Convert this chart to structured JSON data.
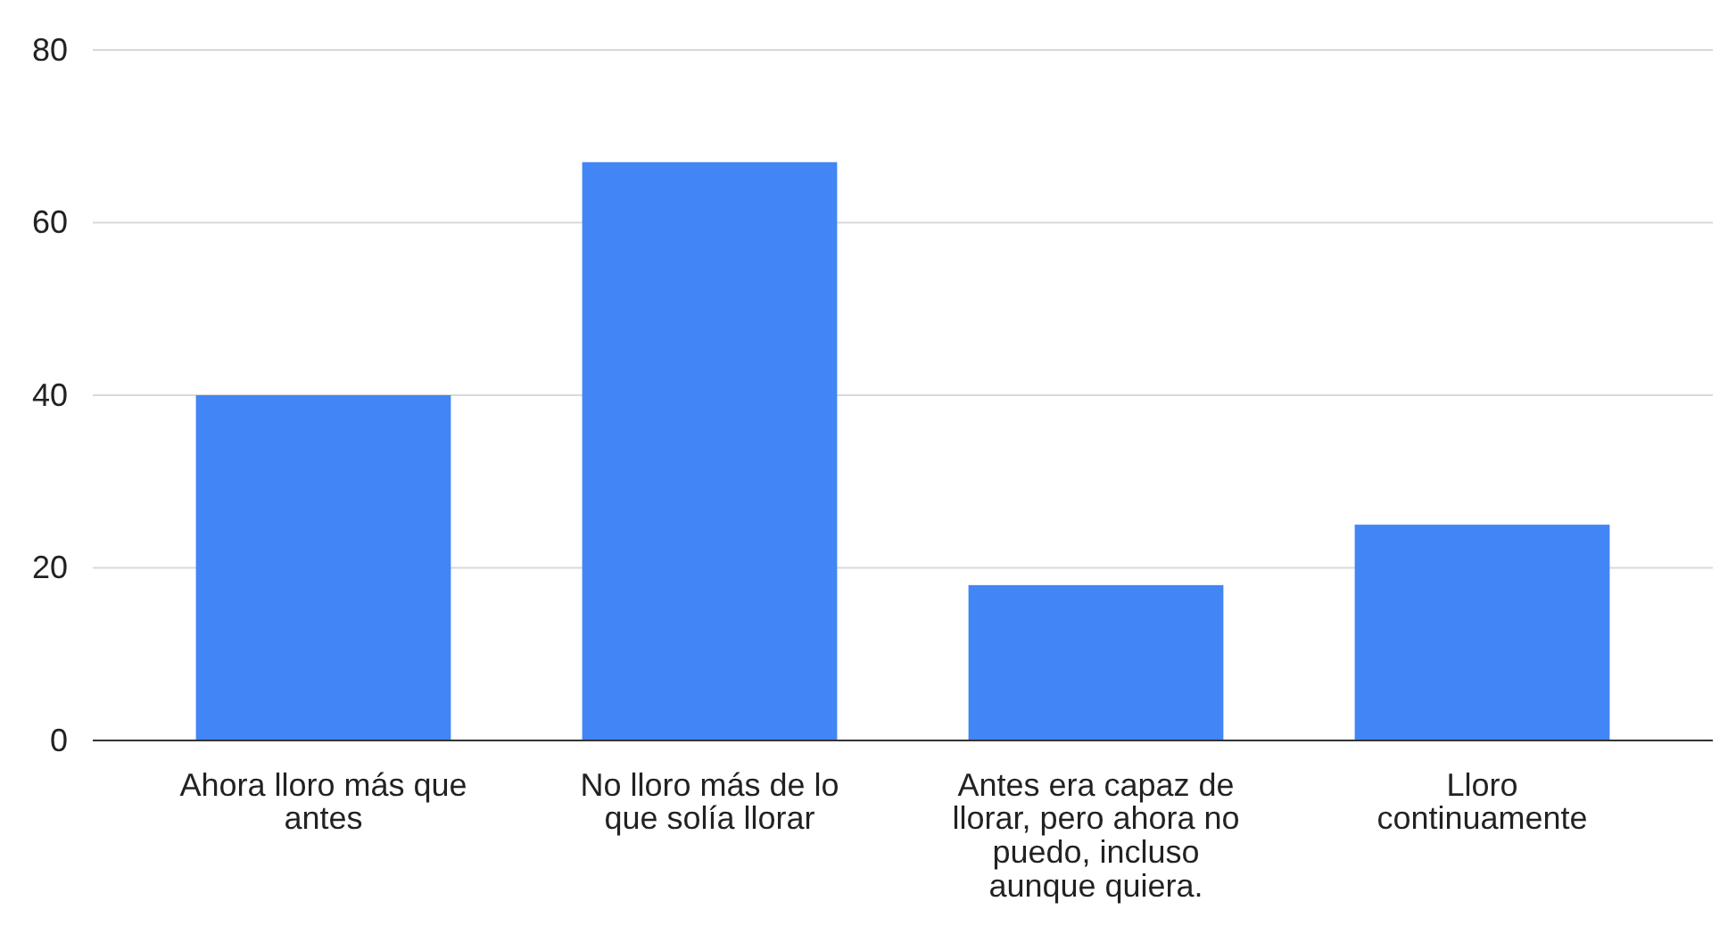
{
  "chart_data": {
    "type": "bar",
    "categories": [
      "Ahora lloro más que antes",
      "No lloro más de lo que solía llorar",
      "Antes era capaz de llorar, pero ahora no puedo, incluso aunque quiera.",
      "Lloro continuamente"
    ],
    "values": [
      40,
      67,
      18,
      25
    ],
    "color": "#4285f4",
    "ylim": [
      0,
      80
    ],
    "yticks": [
      0,
      20,
      40,
      60,
      80
    ],
    "grid": "y"
  }
}
